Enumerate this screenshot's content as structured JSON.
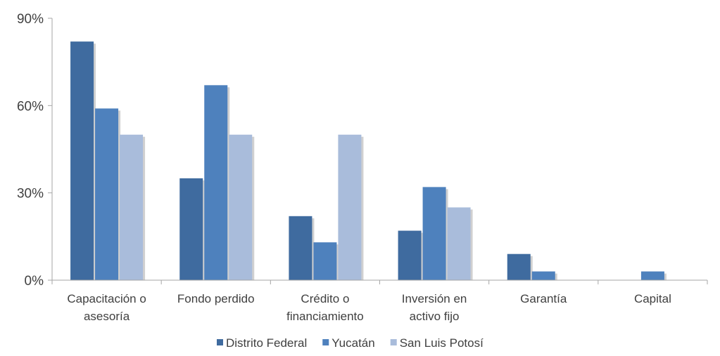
{
  "chart_data": {
    "type": "bar",
    "title": "",
    "xlabel": "",
    "ylabel": "",
    "ylim": [
      0,
      90
    ],
    "yticks": [
      0,
      30,
      60,
      90
    ],
    "ytick_labels": [
      "0%",
      "30%",
      "60%",
      "90%"
    ],
    "grid": false,
    "legend_position": "bottom",
    "categories": [
      [
        "Capacitación o",
        "asesoría"
      ],
      [
        "Fondo perdido"
      ],
      [
        "Crédito o",
        "financiamiento"
      ],
      [
        "Inversión en",
        "activo fijo"
      ],
      [
        "Garantía"
      ],
      [
        "Capital"
      ]
    ],
    "series": [
      {
        "name": "Distrito Federal",
        "color": "#3f6b9f",
        "values": [
          82,
          35,
          22,
          17,
          9,
          0
        ]
      },
      {
        "name": "Yucatán",
        "color": "#4e81bd",
        "values": [
          59,
          67,
          13,
          32,
          3,
          3
        ]
      },
      {
        "name": "San Luis Potosí",
        "color": "#a9bcdb",
        "values": [
          50,
          50,
          50,
          25,
          0,
          0
        ]
      }
    ]
  }
}
